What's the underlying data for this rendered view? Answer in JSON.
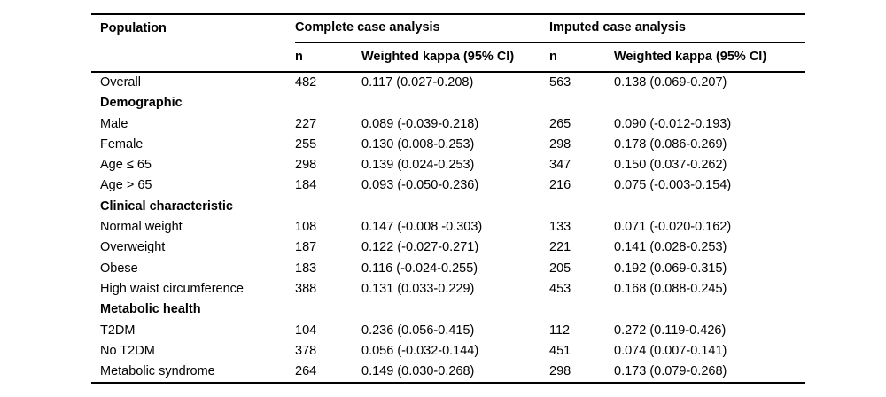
{
  "table": {
    "columns": {
      "population": "Population"
    },
    "group_headers": [
      {
        "label": "Complete case analysis"
      },
      {
        "label": "Imputed case analysis"
      }
    ],
    "sub_headers": [
      "n",
      "Weighted kappa (95% CI)",
      "n",
      "Weighted kappa (95% CI)"
    ],
    "rows": [
      {
        "type": "data",
        "label": "Overall",
        "cca_n": "482",
        "cca_kappa": "0.117 (0.027-0.208)",
        "ica_n": "563",
        "ica_kappa": "0.138 (0.069-0.207)"
      },
      {
        "type": "section",
        "label": "Demographic"
      },
      {
        "type": "data",
        "label": "Male",
        "cca_n": "227",
        "cca_kappa": "0.089 (-0.039-0.218)",
        "ica_n": "265",
        "ica_kappa": "0.090 (-0.012-0.193)"
      },
      {
        "type": "data",
        "label": "Female",
        "cca_n": "255",
        "cca_kappa": "0.130 (0.008-0.253)",
        "ica_n": "298",
        "ica_kappa": "0.178 (0.086-0.269)"
      },
      {
        "type": "data",
        "label": "Age ≤ 65",
        "cca_n": "298",
        "cca_kappa": "0.139 (0.024-0.253)",
        "ica_n": "347",
        "ica_kappa": "0.150 (0.037-0.262)"
      },
      {
        "type": "data",
        "label": "Age > 65",
        "cca_n": "184",
        "cca_kappa": "0.093 (-0.050-0.236)",
        "ica_n": "216",
        "ica_kappa": "0.075 (-0.003-0.154)"
      },
      {
        "type": "section",
        "label": "Clinical characteristic"
      },
      {
        "type": "data",
        "label": "Normal weight",
        "cca_n": "108",
        "cca_kappa": "0.147 (-0.008 -0.303)",
        "ica_n": "133",
        "ica_kappa": "0.071 (-0.020-0.162)"
      },
      {
        "type": "data",
        "label": "Overweight",
        "cca_n": "187",
        "cca_kappa": "0.122 (-0.027-0.271)",
        "ica_n": "221",
        "ica_kappa": "0.141 (0.028-0.253)"
      },
      {
        "type": "data",
        "label": "Obese",
        "cca_n": "183",
        "cca_kappa": "0.116 (-0.024-0.255)",
        "ica_n": "205",
        "ica_kappa": "0.192 (0.069-0.315)"
      },
      {
        "type": "data",
        "label": "High waist circumference",
        "cca_n": "388",
        "cca_kappa": "0.131 (0.033-0.229)",
        "ica_n": "453",
        "ica_kappa": "0.168 (0.088-0.245)"
      },
      {
        "type": "section",
        "label": "Metabolic health"
      },
      {
        "type": "data",
        "label": "T2DM",
        "cca_n": "104",
        "cca_kappa": "0.236 (0.056-0.415)",
        "ica_n": "112",
        "ica_kappa": "0.272 (0.119-0.426)"
      },
      {
        "type": "data",
        "label": "No T2DM",
        "cca_n": "378",
        "cca_kappa": "0.056 (-0.032-0.144)",
        "ica_n": "451",
        "ica_kappa": "0.074 (0.007-0.141)"
      },
      {
        "type": "data",
        "label": "Metabolic syndrome",
        "cca_n": "264",
        "cca_kappa": "0.149 (0.030-0.268)",
        "ica_n": "298",
        "ica_kappa": "0.173 (0.079-0.268)"
      }
    ]
  }
}
